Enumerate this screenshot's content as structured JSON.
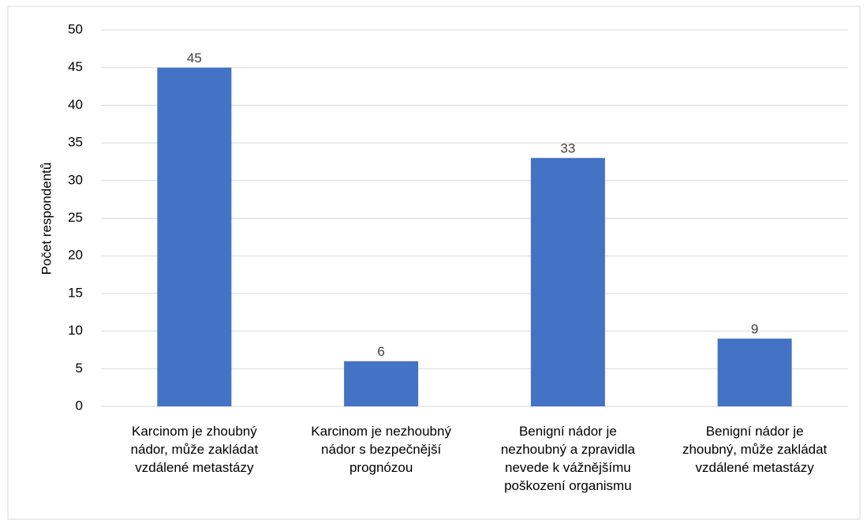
{
  "chart_data": {
    "type": "bar",
    "y_label": "Počet respondentů",
    "categories": [
      "Karcinom je zhoubný\nnádor, může zakládat\nvzdálené metastázy",
      "Karcinom je nezhoubný\nnádor s bezpečnější\nprognózou",
      "Benigní nádor je\nnezhoubný a zpravidla\nnevede k vážnějšímu\npoškození organismu",
      "Benigní nádor je\nzhoubný, může zakládat\nvzdálené metastázy"
    ],
    "values": [
      45,
      6,
      33,
      9
    ],
    "color": "#4472c4",
    "ylim": [
      0,
      50
    ],
    "yticks": [
      0,
      5,
      10,
      15,
      20,
      25,
      30,
      35,
      40,
      45,
      50
    ],
    "grid": true
  }
}
